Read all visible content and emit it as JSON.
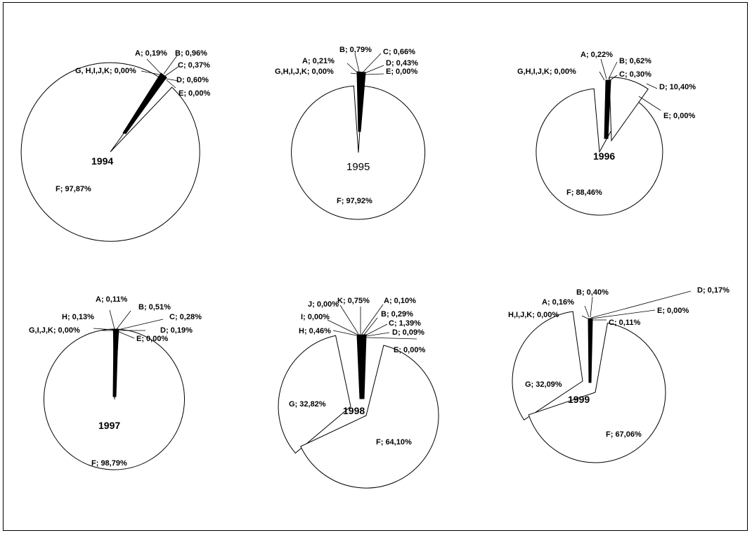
{
  "chart_data": [
    {
      "type": "pie",
      "title": "1994",
      "labels": [
        "A; 0,19%",
        "B; 0,96%",
        "C; 0,37%",
        "D; 0,60%",
        "E; 0,00%",
        "F; 97,87%",
        "G, H,I,J,K; 0,00%"
      ],
      "slices": [
        {
          "name": "A",
          "value": 0.19
        },
        {
          "name": "B",
          "value": 0.96
        },
        {
          "name": "C",
          "value": 0.37
        },
        {
          "name": "D",
          "value": 0.6
        },
        {
          "name": "E",
          "value": 0.0
        },
        {
          "name": "F",
          "value": 97.87
        },
        {
          "name": "G, H,I,J,K",
          "value": 0.0
        }
      ],
      "colors": {
        "fill": "#ffffff",
        "small_slices": "#000000"
      }
    },
    {
      "type": "pie",
      "title": "1995",
      "labels": [
        "B; 0,79%",
        "C; 0,66%",
        "A; 0,21%",
        "D; 0,43%",
        "G,H,I,J,K; 0,00%",
        "E; 0,00%",
        "F; 97,92%"
      ],
      "slices": [
        {
          "name": "A",
          "value": 0.21
        },
        {
          "name": "B",
          "value": 0.79
        },
        {
          "name": "C",
          "value": 0.66
        },
        {
          "name": "D",
          "value": 0.43
        },
        {
          "name": "E",
          "value": 0.0
        },
        {
          "name": "F",
          "value": 97.92
        },
        {
          "name": "G,H,I,J,K",
          "value": 0.0
        }
      ]
    },
    {
      "type": "pie",
      "title": "1996",
      "labels": [
        "A; 0,22%",
        "B; 0,62%",
        "G,H,I,J,K; 0,00%",
        "C; 0,30%",
        "D; 10,40%",
        "E; 0,00%",
        "F; 88,46%"
      ],
      "slices": [
        {
          "name": "A",
          "value": 0.22
        },
        {
          "name": "B",
          "value": 0.62
        },
        {
          "name": "C",
          "value": 0.3
        },
        {
          "name": "D",
          "value": 10.4
        },
        {
          "name": "E",
          "value": 0.0
        },
        {
          "name": "F",
          "value": 88.46
        },
        {
          "name": "G,H,I,J,K",
          "value": 0.0
        }
      ]
    },
    {
      "type": "pie",
      "title": "1997",
      "labels": [
        "A; 0,11%",
        "B; 0,51%",
        "H; 0,13%",
        "C; 0,28%",
        "G,I,J,K; 0,00%",
        "D; 0,19%",
        "E; 0,00%",
        "F; 98,79%"
      ],
      "slices": [
        {
          "name": "A",
          "value": 0.11
        },
        {
          "name": "B",
          "value": 0.51
        },
        {
          "name": "C",
          "value": 0.28
        },
        {
          "name": "D",
          "value": 0.19
        },
        {
          "name": "E",
          "value": 0.0
        },
        {
          "name": "F",
          "value": 98.79
        },
        {
          "name": "H",
          "value": 0.13
        },
        {
          "name": "G,I,J,K",
          "value": 0.0
        }
      ]
    },
    {
      "type": "pie",
      "title": "1998",
      "labels": [
        "J; 0,00%",
        "K; 0,75%",
        "A; 0,10%",
        "I; 0,00%",
        "B; 0,29%",
        "C; 1,39%",
        "H; 0,46%",
        "D; 0,09%",
        "E; 0,00%",
        "G; 32,82%",
        "F; 64,10%"
      ],
      "slices": [
        {
          "name": "A",
          "value": 0.1
        },
        {
          "name": "B",
          "value": 0.29
        },
        {
          "name": "C",
          "value": 1.39
        },
        {
          "name": "D",
          "value": 0.09
        },
        {
          "name": "E",
          "value": 0.0
        },
        {
          "name": "F",
          "value": 64.1
        },
        {
          "name": "G",
          "value": 32.82
        },
        {
          "name": "H",
          "value": 0.46
        },
        {
          "name": "I",
          "value": 0.0
        },
        {
          "name": "J",
          "value": 0.0
        },
        {
          "name": "K",
          "value": 0.75
        }
      ]
    },
    {
      "type": "pie",
      "title": "1999",
      "labels": [
        "D; 0,17%",
        "A; 0,16%",
        "B; 0,40%",
        "E; 0,00%",
        "H,I,J,K; 0,00%",
        "C; 0,11%",
        "G; 32,09%",
        "F; 67,06%"
      ],
      "slices": [
        {
          "name": "A",
          "value": 0.16
        },
        {
          "name": "B",
          "value": 0.4
        },
        {
          "name": "C",
          "value": 0.11
        },
        {
          "name": "D",
          "value": 0.17
        },
        {
          "name": "E",
          "value": 0.0
        },
        {
          "name": "F",
          "value": 67.06
        },
        {
          "name": "G",
          "value": 32.09
        },
        {
          "name": "H,I,J,K",
          "value": 0.0
        }
      ]
    }
  ]
}
